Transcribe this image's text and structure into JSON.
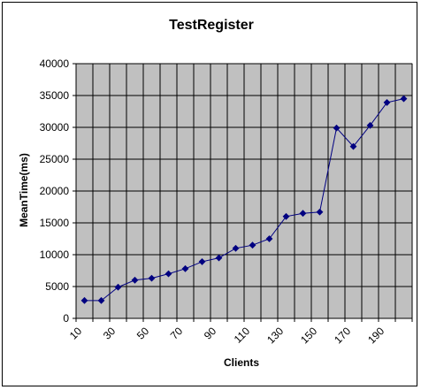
{
  "chart_data": {
    "type": "line",
    "title": "TestRegister",
    "xlabel": "Clients",
    "ylabel": "MeanTime(ms)",
    "x": [
      10,
      20,
      30,
      40,
      50,
      60,
      70,
      80,
      90,
      100,
      110,
      120,
      130,
      140,
      150,
      160,
      170,
      180,
      190,
      200
    ],
    "x_tick_labels": [
      "10",
      "30",
      "50",
      "70",
      "90",
      "110",
      "130",
      "150",
      "170",
      "190"
    ],
    "ylim": [
      0,
      40000
    ],
    "y_ticks": [
      0,
      5000,
      10000,
      15000,
      20000,
      25000,
      30000,
      35000,
      40000
    ],
    "grid": true,
    "legend": "none",
    "series": [
      {
        "values": [
          2800,
          2800,
          4900,
          6000,
          6300,
          7000,
          7800,
          8900,
          9500,
          11000,
          11500,
          12500,
          16000,
          16500,
          16700,
          29900,
          27000,
          30300,
          33900,
          34500
        ],
        "color": "#000080"
      }
    ],
    "plot_background": "#c0c0c0"
  }
}
